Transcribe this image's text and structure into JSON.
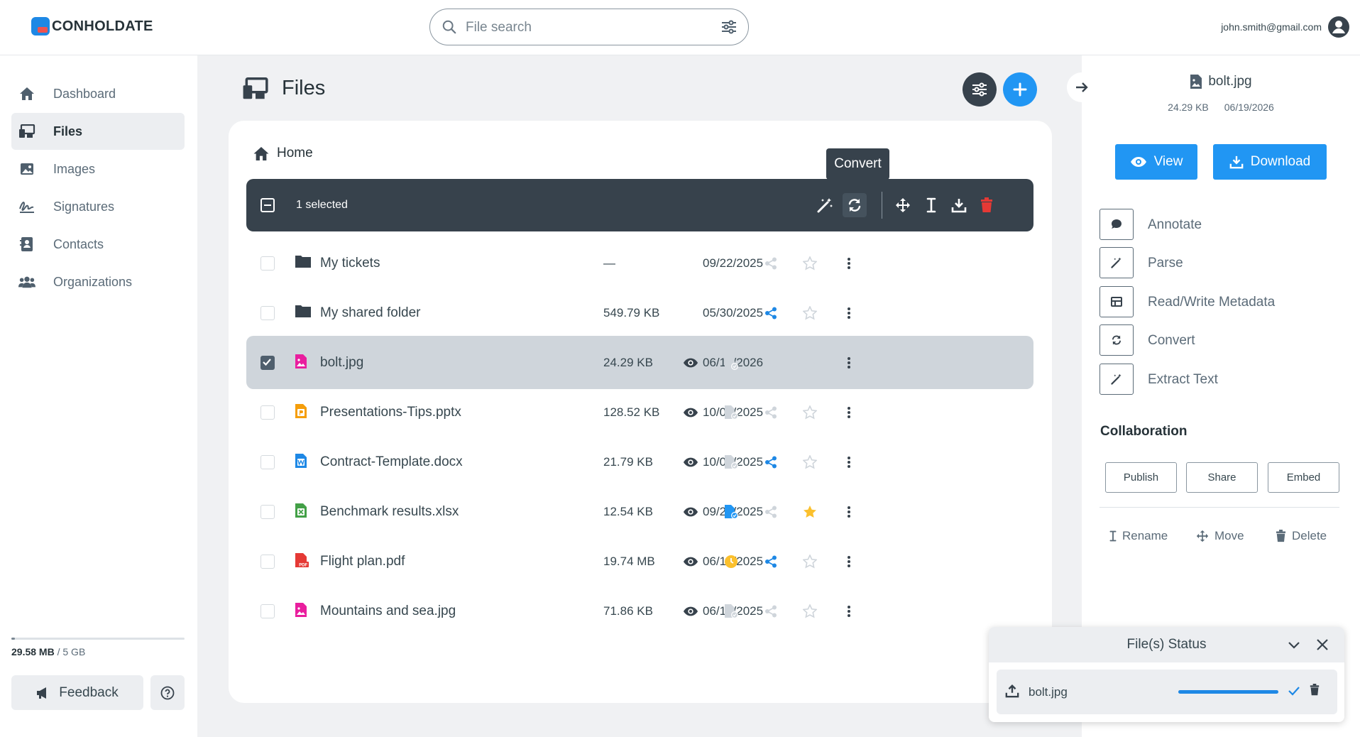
{
  "header": {
    "logo_text": "CONHOLDATE",
    "search_placeholder": "File search",
    "user_email": "john.smith@gmail.com"
  },
  "sidebar": {
    "items": [
      {
        "label": "Dashboard",
        "icon": "home-icon",
        "active": false
      },
      {
        "label": "Files",
        "icon": "files-icon",
        "active": true
      },
      {
        "label": "Images",
        "icon": "image-icon",
        "active": false
      },
      {
        "label": "Signatures",
        "icon": "signature-icon",
        "active": false
      },
      {
        "label": "Contacts",
        "icon": "contacts-icon",
        "active": false
      },
      {
        "label": "Organizations",
        "icon": "organizations-icon",
        "active": false
      }
    ],
    "storage": {
      "used": "29.58 MB",
      "total": "/ 5 GB",
      "used_fraction": 0.006
    },
    "feedback_label": "Feedback"
  },
  "main": {
    "title": "Files",
    "breadcrumb": "Home",
    "tooltip": "Convert",
    "selection_text": "1 selected",
    "rows": [
      {
        "name": "My tickets",
        "type": "folder",
        "size": "—",
        "date": "09/22/2025",
        "selected": false,
        "preview": false,
        "status": "none",
        "shared": false,
        "starred": false
      },
      {
        "name": "My shared folder",
        "type": "folder",
        "size": "549.79 KB",
        "date": "05/30/2025",
        "selected": false,
        "preview": false,
        "status": "none",
        "shared": true,
        "starred": false
      },
      {
        "name": "bolt.jpg",
        "type": "image",
        "size": "24.29 KB",
        "date": "06/19/2026",
        "selected": true,
        "preview": true,
        "status": "inactive",
        "shared": false,
        "starred": false
      },
      {
        "name": "Presentations-Tips.pptx",
        "type": "pptx",
        "size": "128.52 KB",
        "date": "10/08/2025",
        "selected": false,
        "preview": true,
        "status": "inactive",
        "shared": false,
        "starred": false
      },
      {
        "name": "Contract-Template.docx",
        "type": "docx",
        "size": "21.79 KB",
        "date": "10/03/2025",
        "selected": false,
        "preview": true,
        "status": "inactive",
        "shared": true,
        "starred": false
      },
      {
        "name": "Benchmark results.xlsx",
        "type": "xlsx",
        "size": "12.54 KB",
        "date": "09/22/2025",
        "selected": false,
        "preview": true,
        "status": "done",
        "shared": false,
        "starred": true
      },
      {
        "name": "Flight plan.pdf",
        "type": "pdf",
        "size": "19.74 MB",
        "date": "06/18/2025",
        "selected": false,
        "preview": true,
        "status": "pending",
        "shared": true,
        "starred": false
      },
      {
        "name": "Mountains and sea.jpg",
        "type": "image",
        "size": "71.86 KB",
        "date": "06/16/2025",
        "selected": false,
        "preview": true,
        "status": "inactive",
        "shared": false,
        "starred": false
      }
    ]
  },
  "right_panel": {
    "file_name": "bolt.jpg",
    "file_size": "24.29 KB",
    "file_date": "06/19/2026",
    "view_label": "View",
    "download_label": "Download",
    "tools": [
      "Annotate",
      "Parse",
      "Read/Write Metadata",
      "Convert",
      "Extract Text"
    ],
    "collaboration_title": "Collaboration",
    "collab_buttons": [
      "Publish",
      "Share",
      "Embed"
    ],
    "rename_label": "Rename",
    "move_label": "Move",
    "delete_label": "Delete"
  },
  "status_panel": {
    "title": "File(s) Status",
    "item_name": "bolt.jpg",
    "progress": 1.0
  },
  "colors": {
    "accent": "#2196f3",
    "dark": "#37424c",
    "danger": "#e53935",
    "star": "#fbc02d",
    "pending": "#fbc02d"
  }
}
